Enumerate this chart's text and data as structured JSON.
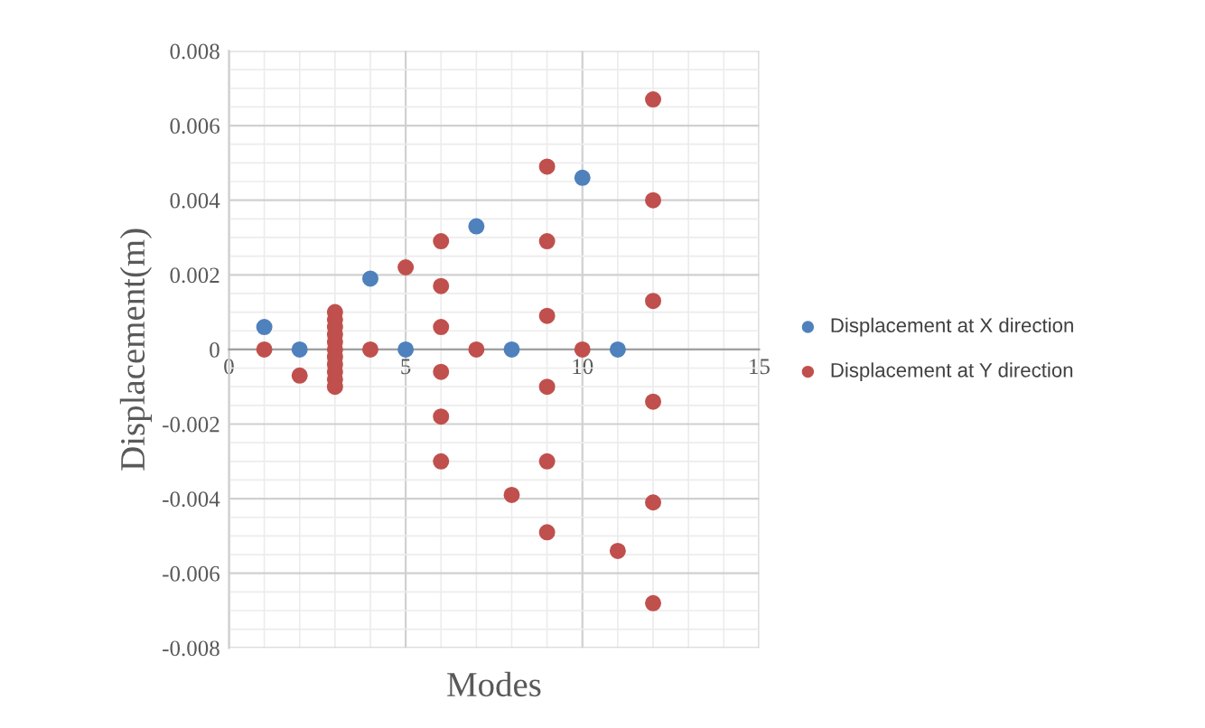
{
  "chart_data": {
    "type": "scatter",
    "xlabel": "Modes",
    "ylabel": "Displacement(m)",
    "xlim": [
      0,
      15
    ],
    "xticks": [
      0,
      5,
      10,
      15
    ],
    "ylim": [
      -0.008,
      0.008
    ],
    "yticks": [
      {
        "value": -0.008,
        "label": "-0.008"
      },
      {
        "value": -0.006,
        "label": "-0.006"
      },
      {
        "value": -0.004,
        "label": "-0.004"
      },
      {
        "value": -0.002,
        "label": "-0.002"
      },
      0,
      {
        "value": 0.002,
        "label": "0.002"
      },
      {
        "value": 0.004,
        "label": "0.004"
      },
      {
        "value": 0.006,
        "label": "0.006"
      },
      {
        "value": 0.008,
        "label": "0.008"
      }
    ],
    "grid": true,
    "legend": "right",
    "marker": "circle",
    "series": [
      {
        "name": "Displacement at X direction",
        "color": "#4f81bd",
        "x": [
          1,
          2,
          4,
          5,
          7,
          8,
          10,
          11
        ],
        "values": [
          0.0006,
          0,
          0.0019,
          0,
          0.0033,
          0,
          0.0046,
          0
        ]
      },
      {
        "name": "Displacement at Y direction",
        "color": "#c0504d",
        "x": [
          1,
          2,
          3,
          3,
          3,
          3,
          3,
          3,
          3,
          3,
          3,
          3,
          3,
          4,
          5,
          6,
          6,
          6,
          6,
          6,
          6,
          7,
          8,
          9,
          9,
          9,
          9,
          9,
          9,
          10,
          11,
          12,
          12,
          12,
          12,
          12,
          12
        ],
        "values": [
          0,
          -0.0007,
          0.001,
          0.0008,
          0.0006,
          0.0004,
          0.0002,
          0,
          -0.0002,
          -0.0004,
          -0.0006,
          -0.0008,
          -0.001,
          0,
          0.0022,
          0.0029,
          0.0017,
          0.0006,
          -0.0006,
          -0.0018,
          -0.003,
          0,
          -0.0039,
          0.0049,
          0.0029,
          0.0009,
          -0.001,
          -0.003,
          -0.0049,
          0,
          -0.0054,
          0.0067,
          0.004,
          0.0013,
          -0.0014,
          -0.0041,
          -0.0068
        ]
      }
    ]
  }
}
